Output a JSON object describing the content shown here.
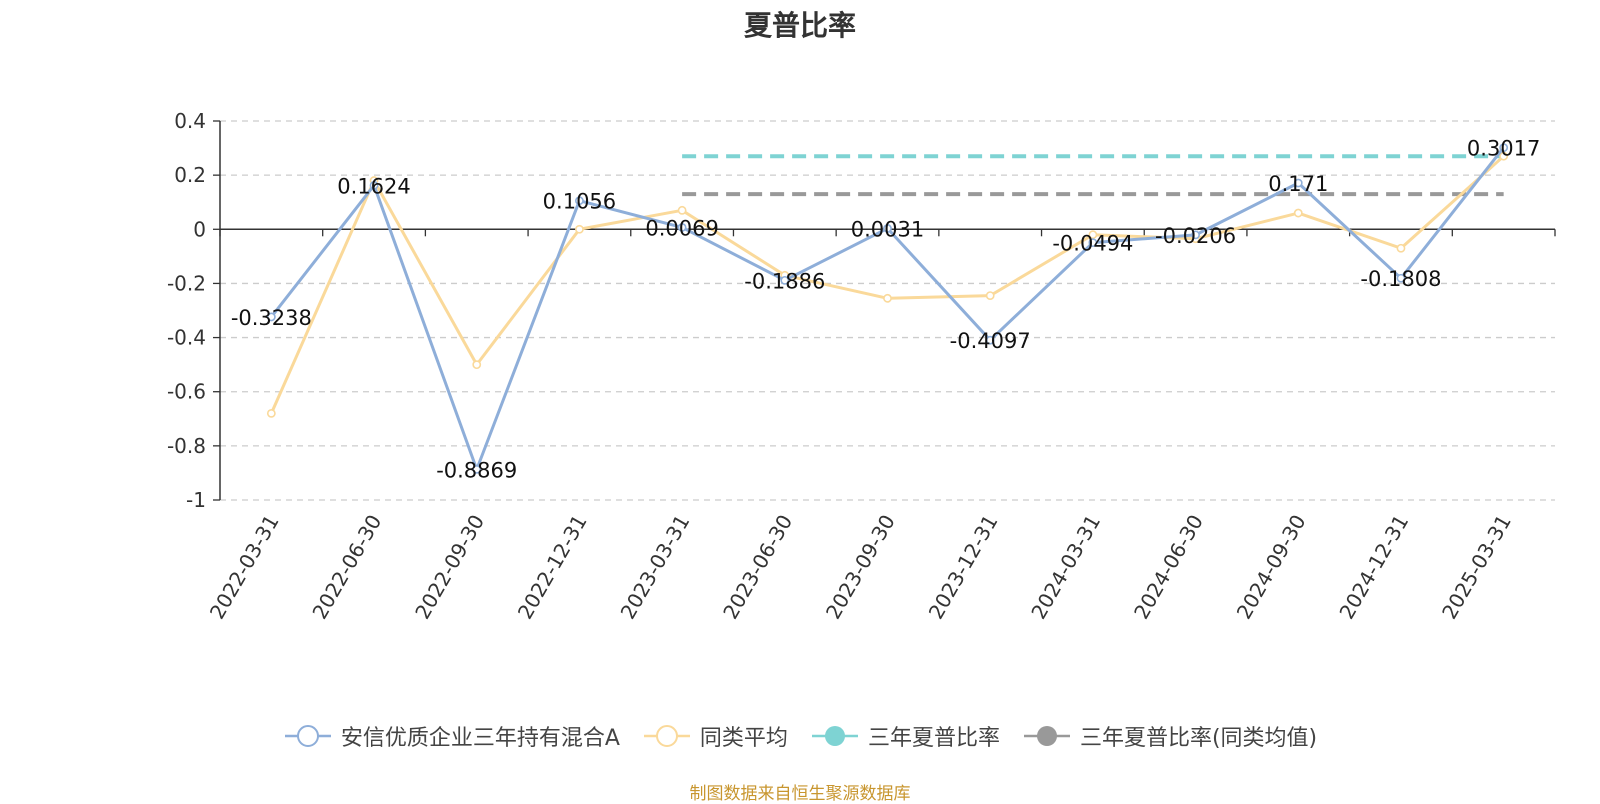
{
  "chart_data": {
    "type": "line",
    "title": "夏普比率",
    "categories": [
      "2022-03-31",
      "2022-06-30",
      "2022-09-30",
      "2022-12-31",
      "2023-03-31",
      "2023-06-30",
      "2023-09-30",
      "2023-12-31",
      "2024-03-31",
      "2024-06-30",
      "2024-09-30",
      "2024-12-31",
      "2025-03-31"
    ],
    "ylim": [
      -1,
      0.4
    ],
    "yticks": [
      0.4,
      0.2,
      0,
      -0.2,
      -0.4,
      -0.6,
      -0.8,
      -1
    ],
    "ytick_labels": [
      "0.4",
      "0.2",
      "0",
      "-0.2",
      "-0.4",
      "-0.6",
      "-0.8",
      "-1"
    ],
    "grid": true,
    "legend_position": "bottom",
    "series": [
      {
        "name": "安信优质企业三年持有混合A",
        "color": "#8eaed9",
        "style": "line",
        "values": [
          -0.3238,
          0.1624,
          -0.8869,
          0.1056,
          0.0069,
          -0.1886,
          0.0031,
          -0.4097,
          -0.0494,
          -0.0206,
          0.171,
          -0.1808,
          0.3017
        ],
        "labels": [
          "-0.3238",
          "0.1624",
          "-0.8869",
          "0.1056",
          "0.0069",
          "-0.1886",
          "0.0031",
          "-0.4097",
          "-0.0494",
          "-0.0206",
          "0.171",
          "-0.1808",
          "0.3017"
        ]
      },
      {
        "name": "同类平均",
        "color": "#fad99a",
        "style": "line",
        "values": [
          -0.68,
          0.18,
          -0.5,
          0.0,
          0.07,
          -0.17,
          -0.255,
          -0.245,
          -0.02,
          -0.035,
          0.06,
          -0.07,
          0.27
        ]
      },
      {
        "name": "三年夏普比率",
        "color": "#7ed3d3",
        "style": "dashed-reference",
        "value": 0.27,
        "from": "2023-03-31",
        "to": "2025-03-31"
      },
      {
        "name": "三年夏普比率(同类均值)",
        "color": "#999999",
        "style": "dashed-reference",
        "value": 0.13,
        "from": "2023-03-31",
        "to": "2025-03-31"
      }
    ]
  },
  "source_note": "制图数据来自恒生聚源数据库"
}
